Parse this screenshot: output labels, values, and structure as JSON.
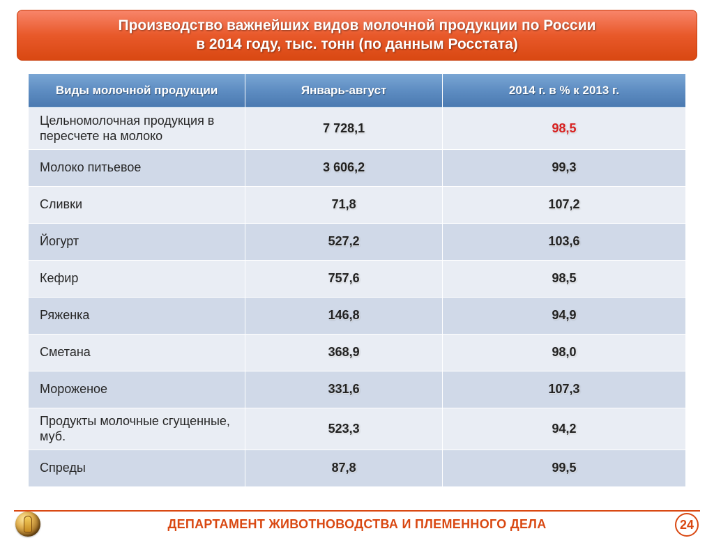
{
  "title_line1": "Производство важнейших видов молочной продукции по России",
  "title_line2": "в 2014 году, тыс. тонн (по данным Росстата)",
  "columns": [
    "Виды молочной продукции",
    "Январь-август",
    "2014 г. в % к 2013 г."
  ],
  "rows": [
    {
      "name": "Цельномолочная продукция в пересчете на молоко",
      "v1": "7 728,1",
      "v2": "98,5",
      "v2_red": true,
      "tall": true
    },
    {
      "name": "Молоко питьевое",
      "v1": "3 606,2",
      "v2": "99,3"
    },
    {
      "name": "Сливки",
      "v1": "71,8",
      "v2": "107,2"
    },
    {
      "name": "Йогурт",
      "v1": "527,2",
      "v2": "103,6"
    },
    {
      "name": "Кефир",
      "v1": "757,6",
      "v2": "98,5"
    },
    {
      "name": "Ряженка",
      "v1": "146,8",
      "v2": "94,9"
    },
    {
      "name": "Сметана",
      "v1": "368,9",
      "v2": "98,0"
    },
    {
      "name": "Мороженое",
      "v1": "331,6",
      "v2": "107,3"
    },
    {
      "name": "Продукты молочные сгущенные, муб.",
      "v1": "523,3",
      "v2": "94,2",
      "tall": true
    },
    {
      "name": "Спреды",
      "v1": "87,8",
      "v2": "99,5"
    }
  ],
  "footer_text": "ДЕПАРТАМЕНТ ЖИВОТНОВОДСТВА И ПЛЕМЕННОГО ДЕЛА",
  "page_number": "24",
  "styling": {
    "title_bg_gradient": [
      "#f8856a",
      "#e8592a",
      "#d94812"
    ],
    "title_border": "#c8400e",
    "title_text_color": "#ffffff",
    "header_bg_gradient": [
      "#7aa6d4",
      "#5e8dc2",
      "#4a79b0"
    ],
    "header_text_color": "#ffffff",
    "row_odd_bg": "#e9edf4",
    "row_even_bg": "#d0d9e8",
    "cell_border": "#ffffff",
    "value_color": "#222222",
    "value_red_color": "#d82020",
    "footer_accent": "#d94812",
    "name_font_size_pt": 13,
    "value_font_size_pt": 13,
    "title_font_size_pt": 16,
    "col_widths_pct": [
      33,
      30,
      37
    ]
  }
}
